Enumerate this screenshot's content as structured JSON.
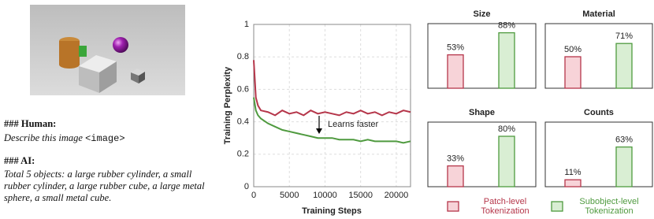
{
  "conversation": {
    "human_heading": "### Human:",
    "human_text": "Describe this image",
    "human_token": "<image>",
    "ai_heading": "### AI:",
    "ai_text": "Total 5 objects: a large rubber cylinder, a small rubber cylinder, a large rubber cube, a large metal sphere, a small metal cube."
  },
  "legend": {
    "entries": [
      {
        "name": "Patch-level Tokenization",
        "color": "#b5364a",
        "fill": "#f7d3d8"
      },
      {
        "name": "Subobject-level Tokenization",
        "color": "#4f9a3f",
        "fill": "#d9eed3"
      }
    ]
  },
  "chart_data": [
    {
      "type": "line",
      "x_label": "Training Steps",
      "y_label": "Training Perplexity",
      "annotation": "Learns faster",
      "x": [
        0,
        300,
        600,
        1000,
        2000,
        3000,
        4000,
        5000,
        6000,
        7000,
        8000,
        9000,
        10000,
        11000,
        12000,
        13000,
        14000,
        15000,
        16000,
        17000,
        18000,
        19000,
        20000,
        21000,
        22000
      ],
      "series": [
        {
          "color": "#b5364a",
          "values": [
            0.78,
            0.55,
            0.5,
            0.47,
            0.46,
            0.44,
            0.47,
            0.45,
            0.46,
            0.44,
            0.47,
            0.45,
            0.46,
            0.45,
            0.44,
            0.46,
            0.45,
            0.47,
            0.45,
            0.46,
            0.44,
            0.46,
            0.45,
            0.47,
            0.46
          ]
        },
        {
          "color": "#4f9a3f",
          "values": [
            0.55,
            0.47,
            0.44,
            0.42,
            0.39,
            0.37,
            0.35,
            0.34,
            0.33,
            0.32,
            0.31,
            0.3,
            0.3,
            0.3,
            0.29,
            0.29,
            0.29,
            0.28,
            0.29,
            0.28,
            0.28,
            0.28,
            0.28,
            0.27,
            0.28
          ]
        }
      ],
      "xlim": [
        0,
        22000
      ],
      "ylim": [
        0,
        1
      ],
      "xticks": [
        0,
        5000,
        10000,
        15000,
        20000
      ],
      "yticks": [
        0,
        0.2,
        0.4,
        0.6,
        0.8,
        1
      ],
      "grid": true
    },
    {
      "type": "bar",
      "title": "Size",
      "categories": [
        null,
        null
      ],
      "values": [
        53,
        88
      ],
      "value_labels": [
        "53%",
        "88%"
      ],
      "ylim": [
        0,
        100
      ]
    },
    {
      "type": "bar",
      "title": "Material",
      "categories": [
        null,
        null
      ],
      "values": [
        50,
        71
      ],
      "value_labels": [
        "50%",
        "71%"
      ],
      "ylim": [
        0,
        100
      ]
    },
    {
      "type": "bar",
      "title": "Shape",
      "categories": [
        null,
        null
      ],
      "values": [
        33,
        80
      ],
      "value_labels": [
        "33%",
        "80%"
      ],
      "ylim": [
        0,
        100
      ]
    },
    {
      "type": "bar",
      "title": "Counts",
      "categories": [
        null,
        null
      ],
      "values": [
        11,
        63
      ],
      "value_labels": [
        "11%",
        "63%"
      ],
      "ylim": [
        0,
        100
      ]
    }
  ]
}
